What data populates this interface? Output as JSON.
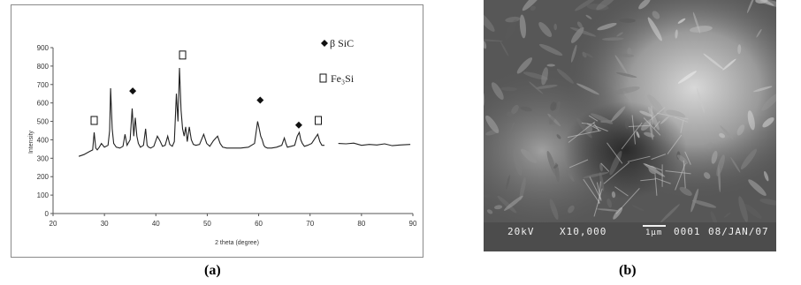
{
  "captions": {
    "a": "(a)",
    "b": "(b)"
  },
  "chart_data": {
    "type": "line",
    "title": "",
    "xlabel": "2 theta (degree)",
    "ylabel": "Intensity",
    "xlim": [
      20,
      90
    ],
    "ylim": [
      0,
      900
    ],
    "x_ticks": [
      20,
      30,
      40,
      50,
      60,
      70,
      80,
      90
    ],
    "y_ticks": [
      0,
      100,
      200,
      300,
      400,
      500,
      600,
      700,
      800,
      900
    ],
    "grid": false,
    "legend": [
      {
        "symbol": "diamond",
        "label": "β SiC"
      },
      {
        "symbol": "square",
        "label": "Fe₃Si"
      }
    ],
    "legend_position": "top-right",
    "series": [
      {
        "x": [
          25,
          26,
          27,
          27.7,
          28.0,
          28.3,
          28.6,
          29.0,
          29.4,
          30.0,
          30.7,
          31.0,
          31.2,
          31.5,
          31.8,
          32.3,
          33.0,
          33.6,
          34.0,
          34.4,
          35.0,
          35.4,
          35.7,
          36.0,
          36.3,
          36.6,
          37.0,
          37.6,
          38.0,
          38.3,
          38.6,
          39.0,
          39.6,
          40.3,
          40.8,
          41.3,
          41.8,
          42.3,
          42.7,
          43.2,
          43.6,
          44.0,
          44.3,
          44.6,
          44.9,
          45.2,
          45.5,
          45.8,
          46.1,
          46.5,
          46.9,
          47.3,
          47.8,
          48.5,
          49.3,
          49.9,
          50.5,
          51.2,
          52.0,
          52.5,
          53.0,
          53.8,
          55.0,
          56.5,
          58.0,
          59.2,
          59.8,
          60.1,
          60.4,
          60.7,
          61.0,
          61.3,
          61.7,
          62.5,
          63.5,
          64.5,
          65.0,
          65.3,
          65.6,
          66.3,
          67.0,
          67.5,
          67.9,
          68.2,
          68.5,
          68.9,
          69.5,
          70.3,
          71.0,
          71.5,
          71.9,
          72.3,
          72.8
        ],
        "y": [
          310,
          320,
          335,
          345,
          440,
          355,
          345,
          360,
          380,
          360,
          370,
          450,
          680,
          460,
          380,
          360,
          355,
          365,
          430,
          370,
          400,
          570,
          420,
          520,
          420,
          380,
          360,
          370,
          460,
          370,
          360,
          355,
          365,
          420,
          395,
          365,
          370,
          420,
          375,
          365,
          390,
          650,
          500,
          790,
          560,
          460,
          420,
          470,
          390,
          470,
          400,
          375,
          370,
          375,
          430,
          380,
          365,
          395,
          420,
          380,
          360,
          355,
          355,
          355,
          360,
          380,
          500,
          460,
          420,
          400,
          370,
          360,
          355,
          355,
          360,
          370,
          410,
          380,
          360,
          365,
          370,
          420,
          440,
          400,
          380,
          365,
          370,
          380,
          410,
          430,
          390,
          370,
          370
        ]
      },
      {
        "x": [
          75.5,
          77,
          78.5,
          80,
          81.5,
          83,
          84.5,
          86,
          87.5,
          89.5
        ],
        "y": [
          380,
          378,
          382,
          370,
          375,
          372,
          378,
          368,
          372,
          375
        ]
      }
    ],
    "annotations": [
      {
        "symbol": "square",
        "x": 28,
        "y": 505
      },
      {
        "symbol": "diamond",
        "x": 35.5,
        "y": 665
      },
      {
        "symbol": "square",
        "x": 45.2,
        "y": 860
      },
      {
        "symbol": "diamond",
        "x": 60.3,
        "y": 615
      },
      {
        "symbol": "diamond",
        "x": 67.8,
        "y": 480
      },
      {
        "symbol": "square",
        "x": 71.6,
        "y": 505
      }
    ]
  },
  "sem_info": {
    "voltage": "20kV",
    "magnification": "X10,000",
    "scale_bar": "1μm",
    "image_number": "0001",
    "date": "08/JAN/07"
  }
}
